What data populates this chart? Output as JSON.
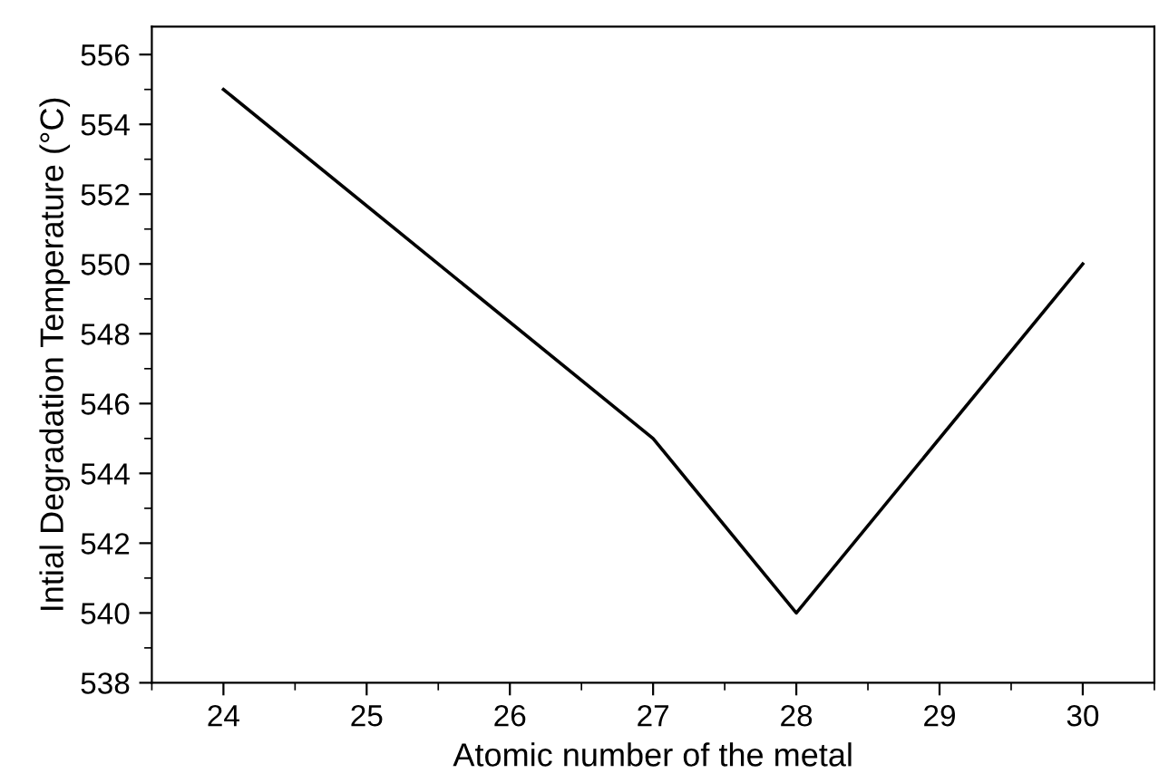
{
  "chart_data": {
    "type": "line",
    "xlabel": "Atomic number of the metal",
    "ylabel": "Intial Degradation Temperature (°C)",
    "x": [
      24,
      27,
      28,
      30
    ],
    "series": [
      {
        "color": "#000000",
        "values": [
          555,
          545,
          540,
          550
        ]
      }
    ],
    "xlim": [
      23.5,
      30.5
    ],
    "xticks": [
      24,
      25,
      26,
      27,
      28,
      29,
      30
    ],
    "ylim": [
      538,
      556.8
    ],
    "yticks": [
      538,
      540,
      542,
      544,
      546,
      548,
      550,
      552,
      554,
      556
    ],
    "grid": false,
    "legend": false,
    "marker": "none",
    "line_style": "solid"
  }
}
